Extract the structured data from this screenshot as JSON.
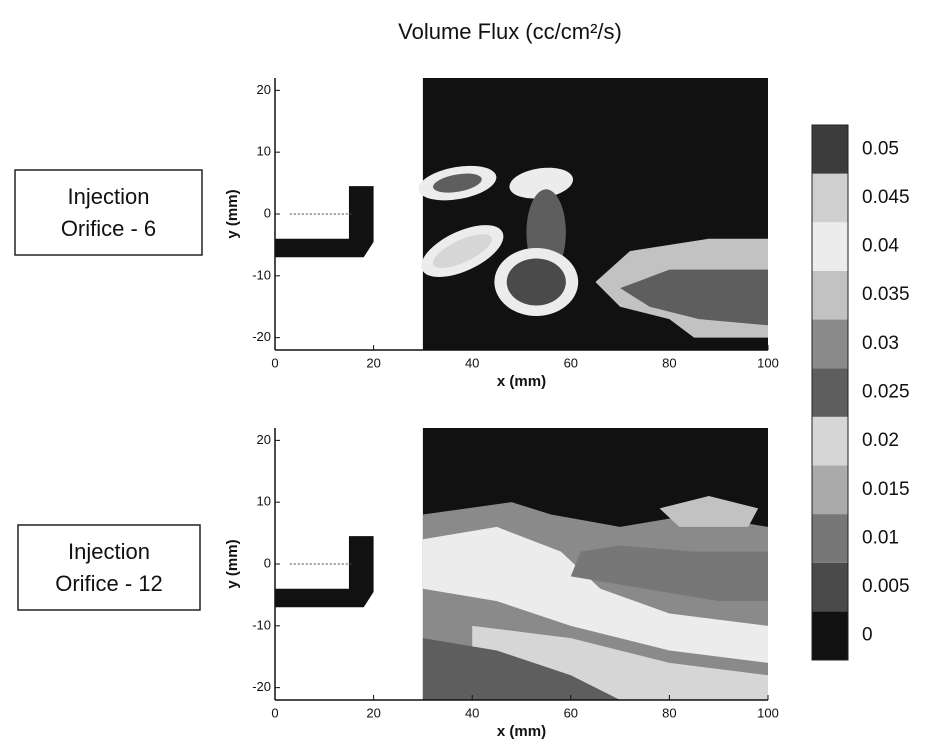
{
  "chart_data": {
    "type": "contour",
    "title": "Volume Flux  (cc/cm²/s)",
    "xlabel": "x (mm)",
    "ylabel": "y (mm)",
    "xlim": [
      0,
      100
    ],
    "xticks": [
      0,
      20,
      40,
      60,
      80,
      100
    ],
    "ylim": [
      -22,
      22
    ],
    "yticks": [
      -20,
      -10,
      0,
      10,
      20
    ],
    "colorbar": {
      "ticks": [
        0,
        0.005,
        0.01,
        0.015,
        0.02,
        0.025,
        0.03,
        0.035,
        0.04,
        0.045,
        0.05
      ],
      "colors": [
        "#111111",
        "#4a4a4a",
        "#777777",
        "#aaaaaa",
        "#d6d6d6",
        "#5e5e5e",
        "#8a8a8a",
        "#c2c2c2",
        "#ececec",
        "#cfcfcf",
        "#3c3c3c"
      ]
    },
    "panels": [
      {
        "label": [
          "Injection",
          "Orifice - 6"
        ],
        "regions": [
          {
            "level": 0
          },
          {
            "level": 0.04
          },
          {
            "level": 0.025
          },
          {
            "level": 0.04
          },
          {
            "level": 0.04
          },
          {
            "level": 0.02
          },
          {
            "level": 0.025
          },
          {
            "level": 0.04
          },
          {
            "level": 0.005
          },
          {
            "level": 0.035
          },
          {
            "level": 0.025
          }
        ]
      },
      {
        "label": [
          "Injection",
          "Orifice - 12"
        ],
        "regions": [
          {
            "level": 0
          },
          {
            "level": 0.03
          },
          {
            "level": 0.04
          },
          {
            "level": 0.02
          },
          {
            "level": 0.01
          },
          {
            "level": 0.035
          },
          {
            "level": 0.025
          }
        ]
      }
    ]
  }
}
